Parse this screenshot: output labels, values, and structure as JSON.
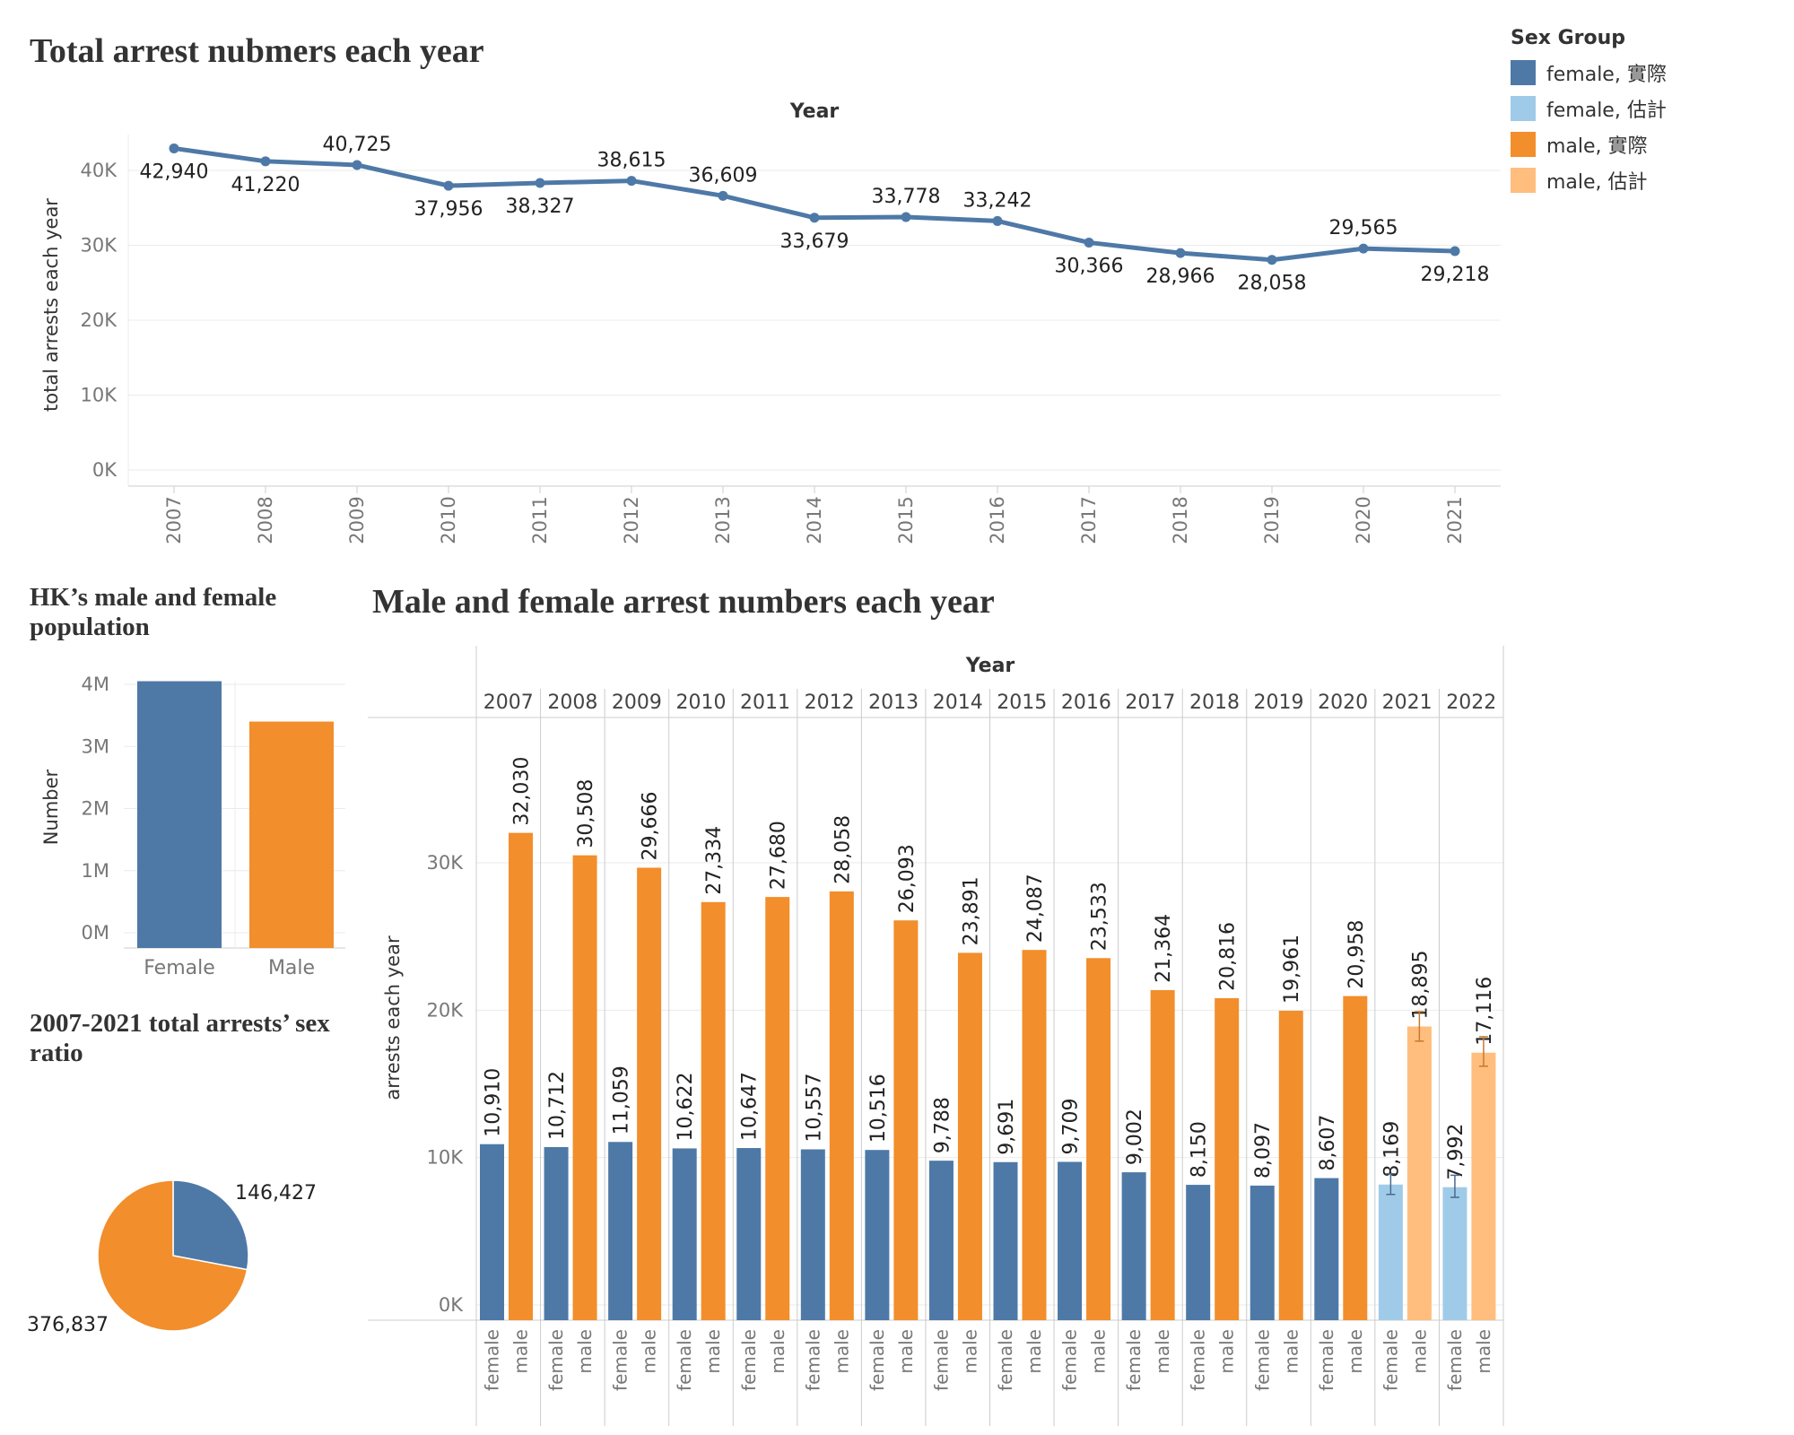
{
  "titles": {
    "line": "Total arrest nubmers each year",
    "population": "HK’s male and female population",
    "pie": "2007-2021 total arrests’ sex ratio",
    "bar": "Male and female arrest numbers each year"
  },
  "legend": {
    "title": "Sex Group",
    "items": [
      {
        "label": "female, 實際",
        "color": "#4e79a7"
      },
      {
        "label": "female, 估計",
        "color": "#a0cbe8"
      },
      {
        "label": "male, 實際",
        "color": "#f28e2b"
      },
      {
        "label": "male, 估計",
        "color": "#ffbe7d"
      }
    ]
  },
  "colors": {
    "female": "#4e79a7",
    "female_est": "#a0cbe8",
    "male": "#f28e2b",
    "male_est": "#ffbe7d"
  },
  "chart_data": [
    {
      "type": "line",
      "title": "Total arrest nubmers each year",
      "xlabel": "Year",
      "ylabel": "total arrests each year",
      "x": [
        "2007",
        "2008",
        "2009",
        "2010",
        "2011",
        "2012",
        "2013",
        "2014",
        "2015",
        "2016",
        "2017",
        "2018",
        "2019",
        "2020",
        "2021"
      ],
      "values": [
        42940,
        41220,
        40725,
        37956,
        38327,
        38615,
        36609,
        33679,
        33778,
        33242,
        30366,
        28966,
        28058,
        29565,
        29218
      ],
      "value_labels": [
        "42,940",
        "41,220",
        "40,725",
        "37,956",
        "38,327",
        "38,615",
        "36,609",
        "33,679",
        "33,778",
        "33,242",
        "30,366",
        "28,966",
        "28,058",
        "29,565",
        "29,218"
      ],
      "yticks": [
        "0K",
        "10K",
        "20K",
        "30K",
        "40K"
      ],
      "ylim": [
        0,
        45000
      ]
    },
    {
      "type": "bar",
      "title": "HK’s male and female population",
      "ylabel": "Number",
      "categories": [
        "Female",
        "Male"
      ],
      "values": [
        4050000,
        3400000
      ],
      "yticks": [
        "0M",
        "1M",
        "2M",
        "3M",
        "4M"
      ],
      "ylim": [
        0,
        4200000
      ]
    },
    {
      "type": "pie",
      "title": "2007-2021 total arrests’ sex ratio",
      "slices": [
        {
          "name": "female",
          "value": 146427,
          "label": "146,427"
        },
        {
          "name": "male",
          "value": 376837,
          "label": "376,837"
        }
      ]
    },
    {
      "type": "bar",
      "title": "Male and female arrest numbers each year",
      "xlabel": "Year",
      "ylabel": "arrests each year",
      "years": [
        "2007",
        "2008",
        "2009",
        "2010",
        "2011",
        "2012",
        "2013",
        "2014",
        "2015",
        "2016",
        "2017",
        "2018",
        "2019",
        "2020",
        "2021",
        "2022"
      ],
      "sub_categories": [
        "female",
        "male"
      ],
      "series": [
        {
          "name": "female",
          "values": [
            10910,
            10712,
            11059,
            10622,
            10647,
            10557,
            10516,
            9788,
            9691,
            9709,
            9002,
            8150,
            8097,
            8607,
            8169,
            7992
          ],
          "labels": [
            "10,910",
            "10,712",
            "11,059",
            "10,622",
            "10,647",
            "10,557",
            "10,516",
            "9,788",
            "9,691",
            "9,709",
            "9,002",
            "8,150",
            "8,097",
            "8,607",
            "8,169",
            "7,992"
          ]
        },
        {
          "name": "male",
          "values": [
            32030,
            30508,
            29666,
            27334,
            27680,
            28058,
            26093,
            23891,
            24087,
            23533,
            21364,
            20816,
            19961,
            20958,
            18895,
            17116
          ],
          "labels": [
            "32,030",
            "30,508",
            "29,666",
            "27,334",
            "27,680",
            "28,058",
            "26,093",
            "23,891",
            "24,087",
            "23,533",
            "21,364",
            "20,816",
            "19,961",
            "20,958",
            "18,895",
            "17,116"
          ]
        }
      ],
      "estimated_years": [
        "2021",
        "2022"
      ],
      "error_bars": {
        "female": {
          "2021": [
            7500,
            8900
          ],
          "2022": [
            7300,
            8800
          ]
        },
        "male": {
          "2021": [
            17900,
            19900
          ],
          "2022": [
            16200,
            18200
          ]
        }
      },
      "yticks": [
        "0K",
        "10K",
        "20K",
        "30K"
      ],
      "ylim": [
        0,
        38000
      ]
    }
  ]
}
